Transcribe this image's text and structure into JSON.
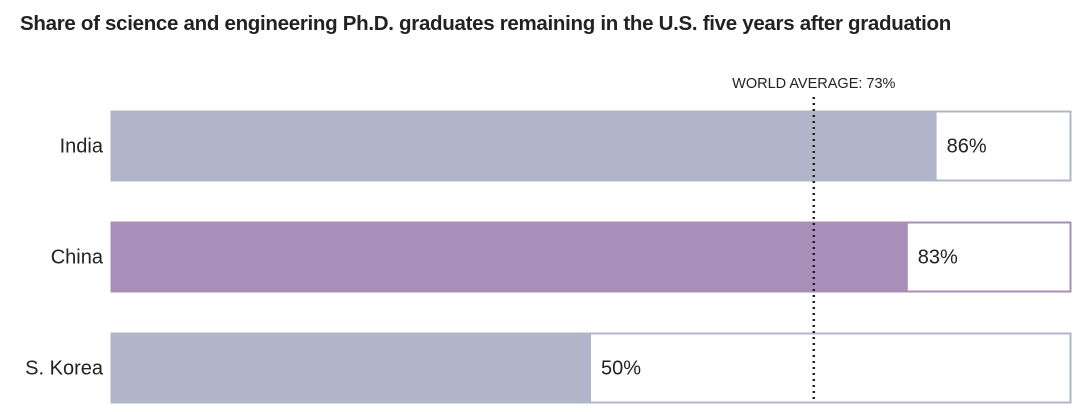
{
  "chart_data": {
    "type": "bar",
    "orientation": "horizontal",
    "title": "Share of science and engineering Ph.D. graduates remaining in the U.S. five years after graduation",
    "xlabel": "",
    "ylabel": "",
    "xlim": [
      0,
      100
    ],
    "unit": "%",
    "categories": [
      "India",
      "China",
      "S. Korea"
    ],
    "values": [
      86,
      83,
      50
    ],
    "data_labels": [
      "86%",
      "83%",
      "50%"
    ],
    "highlight": "China",
    "reference_line": {
      "label": "WORLD AVERAGE: 73%",
      "value": 73,
      "style": "dotted"
    },
    "grid": false,
    "legend": "none",
    "colors": {
      "bar": "#b1b5c9",
      "highlight": "#a78fba",
      "track_fill": "#ffffff",
      "reference_line": "#222222",
      "text": "#222222"
    }
  }
}
